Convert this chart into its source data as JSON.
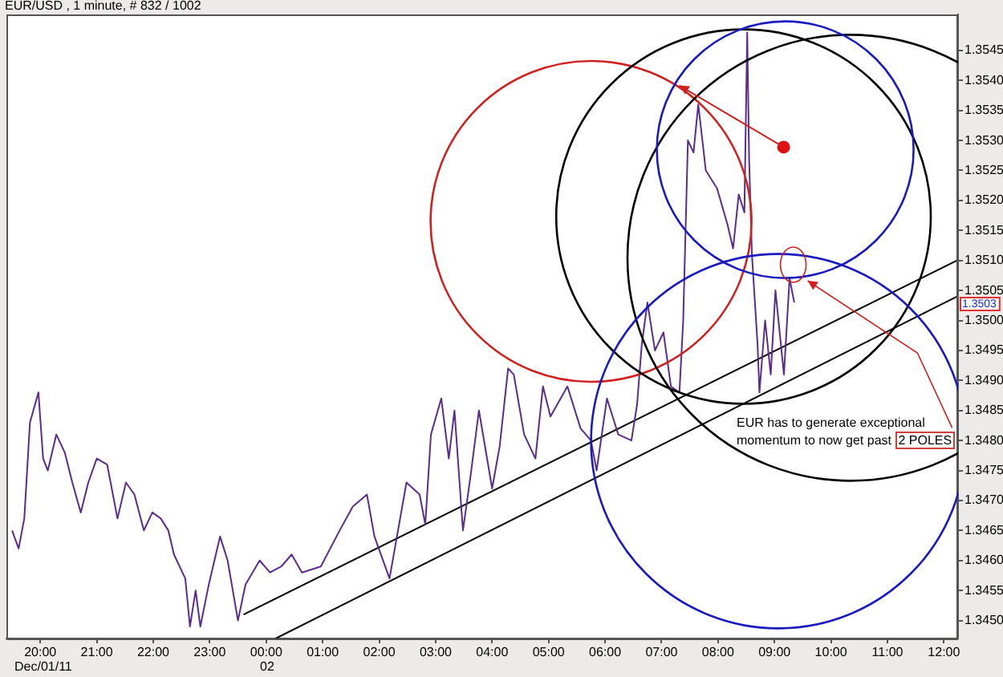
{
  "chart_data": {
    "type": "line",
    "title": "EUR/USD , 1 minute, # 832 / 1002",
    "xlim": [
      "--12-01T19:24",
      "--12-02T12:15"
    ],
    "xticks": [
      {
        "value": "--12-01T20:00",
        "label": "20:00"
      },
      {
        "value": "--12-01T21:00",
        "label": "21:00"
      },
      {
        "value": "--12-01T22:00",
        "label": "22:00"
      },
      {
        "value": "--12-01T23:00",
        "label": "23:00"
      },
      {
        "value": "--12-02T00:00",
        "label": "00:00"
      },
      {
        "value": "--12-02T01:00",
        "label": "01:00"
      },
      {
        "value": "--12-02T02:00",
        "label": "02:00"
      },
      {
        "value": "--12-02T03:00",
        "label": "03:00"
      },
      {
        "value": "--12-02T04:00",
        "label": "04:00"
      },
      {
        "value": "--12-02T05:00",
        "label": "05:00"
      },
      {
        "value": "--12-02T06:00",
        "label": "06:00"
      },
      {
        "value": "--12-02T07:00",
        "label": "07:00"
      },
      {
        "value": "--12-02T08:00",
        "label": "08:00"
      },
      {
        "value": "--12-02T09:00",
        "label": "09:00"
      },
      {
        "value": "--12-02T10:00",
        "label": "10:00"
      },
      {
        "value": "--12-02T11:00",
        "label": "11:00"
      },
      {
        "value": "--12-02T12:00",
        "label": "12:00"
      }
    ],
    "ylim": [
      1.3447,
      1.3551
    ],
    "yticks": [
      {
        "value": 1.345,
        "label": "1.3450"
      },
      1.3455,
      {
        "value": 1.346,
        "label": "1.3460"
      },
      1.3465,
      {
        "value": 1.347,
        "label": "1.3470"
      },
      1.3475,
      {
        "value": 1.348,
        "label": "1.3480"
      },
      1.3485,
      {
        "value": 1.349,
        "label": "1.3490"
      },
      1.3495,
      {
        "value": 1.35,
        "label": "1.3500"
      },
      1.3505,
      {
        "value": 1.351,
        "label": "1.3510"
      },
      1.3515,
      {
        "value": 1.352,
        "label": "1.3520"
      },
      1.3525,
      {
        "value": 1.353,
        "label": "1.3530"
      },
      1.3535,
      {
        "value": 1.354,
        "label": "1.3540"
      },
      1.3545
    ],
    "series": [
      {
        "color": "#5b2c8c",
        "x": [
          "--12-01T19:30",
          "--12-01T19:37",
          "--12-01T19:43",
          "--12-01T19:49",
          "--12-01T19:58",
          "--12-01T20:03",
          "--12-01T20:08",
          "--12-01T20:17",
          "--12-01T20:26",
          "--12-01T20:34",
          "--12-01T20:43",
          "--12-01T20:51",
          "--12-01T21:00",
          "--12-01T21:11",
          "--12-01T21:22",
          "--12-01T21:31",
          "--12-01T21:40",
          "--12-01T21:50",
          "--12-01T21:59",
          "--12-01T22:08",
          "--12-01T22:16",
          "--12-01T22:22",
          "--12-01T22:34",
          "--12-01T22:39",
          "--12-01T22:45",
          "--12-01T22:50",
          "--12-01T22:59",
          "--12-01T23:11",
          "--12-01T23:19",
          "--12-01T23:30",
          "--12-01T23:38",
          "--12-01T23:53",
          "--12-02T00:04",
          "--12-02T00:16",
          "--12-02T00:27",
          "--12-02T00:38",
          "--12-02T00:58",
          "--12-02T01:18",
          "--12-02T01:32",
          "--12-02T01:47",
          "--12-02T01:55",
          "--12-02T02:11",
          "--12-02T02:20",
          "--12-02T02:29",
          "--12-02T02:43",
          "--12-02T02:49",
          "--12-02T02:55",
          "--12-02T03:06",
          "--12-02T03:14",
          "--12-02T03:20",
          "--12-02T03:29",
          "--12-02T03:37",
          "--12-02T03:46",
          "--12-02T04:00",
          "--12-02T04:08",
          "--12-02T04:17",
          "--12-02T04:23",
          "--12-02T04:34",
          "--12-02T04:46",
          "--12-02T04:54",
          "--12-02T05:02",
          "--12-02T05:20",
          "--12-02T05:34",
          "--12-02T05:45",
          "--12-02T05:51",
          "--12-02T06:02",
          "--12-02T06:14",
          "--12-02T06:28",
          "--12-02T06:34",
          "--12-02T06:39",
          "--12-02T06:45",
          "--12-02T06:53",
          "--12-02T07:02",
          "--12-02T07:10",
          "--12-02T07:19",
          "--12-02T07:23",
          "--12-02T07:28",
          "--12-02T07:34",
          "--12-02T07:39",
          "--12-02T07:47",
          "--12-02T07:59",
          "--12-02T08:10",
          "--12-02T08:16",
          "--12-02T08:22",
          "--12-02T08:28",
          "--12-02T08:31",
          "--12-02T08:33",
          "--12-02T08:36",
          "--12-02T08:42",
          "--12-02T08:44",
          "--12-02T08:50",
          "--12-02T08:56",
          "--12-02T09:01",
          "--12-02T09:10",
          "--12-02T09:16",
          "--12-02T09:21"
        ],
        "values": [
          1.3465,
          1.3462,
          1.3467,
          1.3483,
          1.3488,
          1.3477,
          1.3475,
          1.3481,
          1.3478,
          1.3473,
          1.3468,
          1.3473,
          1.3477,
          1.3476,
          1.3467,
          1.3473,
          1.3471,
          1.3465,
          1.3468,
          1.3467,
          1.3465,
          1.3461,
          1.3457,
          1.3449,
          1.3455,
          1.3449,
          1.3456,
          1.3464,
          1.346,
          1.345,
          1.3456,
          1.346,
          1.3458,
          1.3459,
          1.3461,
          1.3458,
          1.3459,
          1.3465,
          1.3469,
          1.3471,
          1.3464,
          1.3457,
          1.3465,
          1.3473,
          1.3471,
          1.3466,
          1.3481,
          1.3487,
          1.3477,
          1.3485,
          1.3465,
          1.3474,
          1.3485,
          1.3472,
          1.3479,
          1.3492,
          1.3491,
          1.3481,
          1.3477,
          1.3489,
          1.3484,
          1.3489,
          1.3482,
          1.348,
          1.3475,
          1.3487,
          1.3481,
          1.348,
          1.3486,
          1.3496,
          1.3503,
          1.3495,
          1.3498,
          1.3489,
          1.3488,
          1.35,
          1.353,
          1.3528,
          1.3536,
          1.3525,
          1.3522,
          1.3516,
          1.3512,
          1.3521,
          1.3518,
          1.3548,
          1.3527,
          1.3511,
          1.3496,
          1.3488,
          1.35,
          1.3491,
          1.3505,
          1.3491,
          1.3507,
          1.3503
        ]
      },
      {
        "type": "line",
        "color": "#000000",
        "x": [
          "--12-01T23:36",
          "--12-02T12:14"
        ],
        "values": [
          1.3451,
          1.351
        ]
      },
      {
        "type": "line",
        "color": "#000000",
        "x": [
          "--12-02T00:10",
          "--12-02T12:14"
        ],
        "values": [
          1.3447,
          1.3504
        ]
      }
    ],
    "annotations": [
      "EUR has to generate exceptional momentum to now get past",
      "2 POLES",
      {
        "text": "1.3503",
        "y": 1.3503
      },
      "Dec/01/11",
      "02"
    ]
  }
}
